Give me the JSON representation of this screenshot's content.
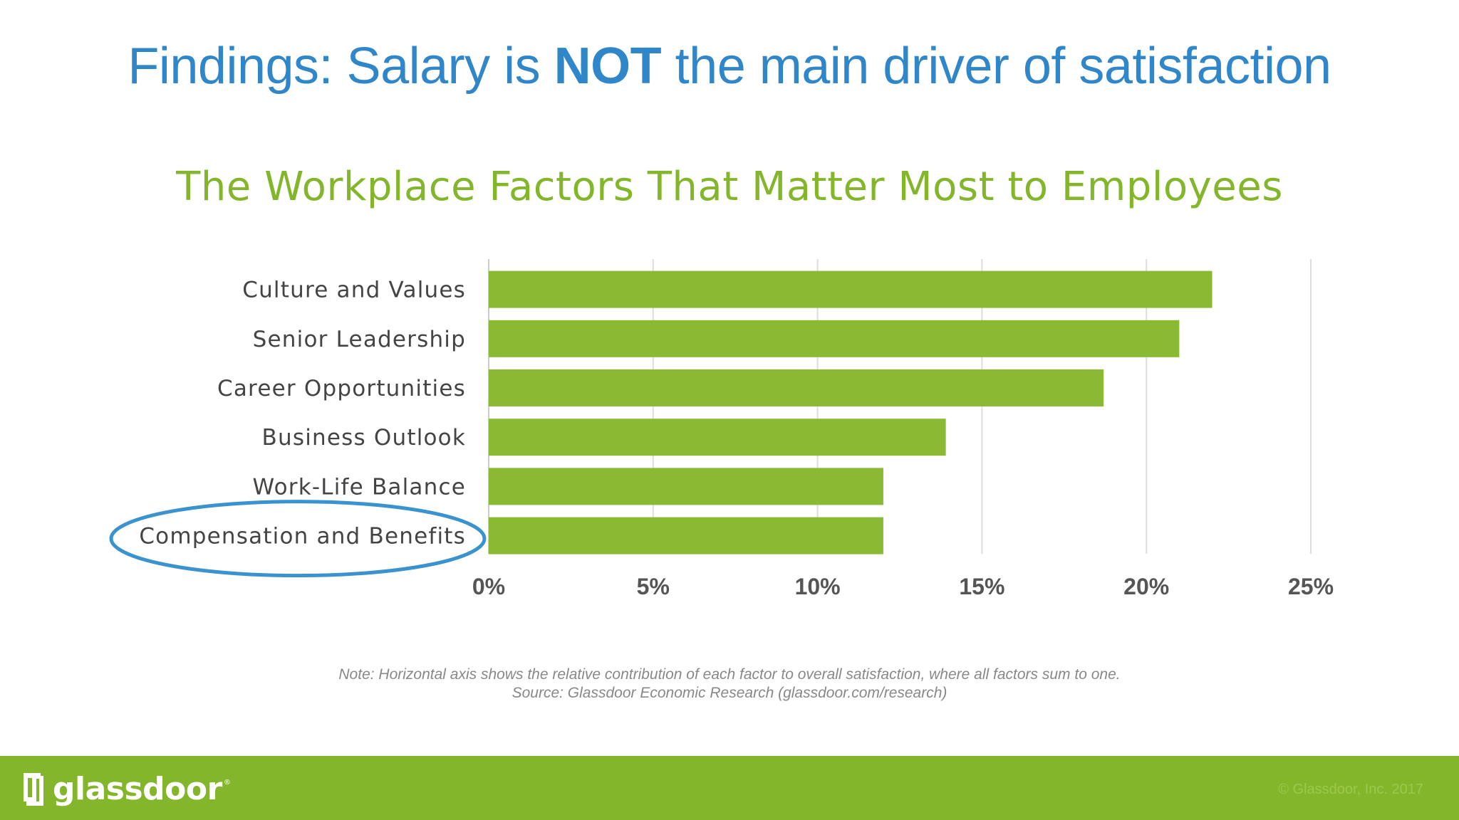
{
  "slide": {
    "title_prefix": "Findings: Salary is ",
    "title_emphasis": "NOT",
    "title_suffix": " the main driver of satisfaction",
    "note_line1": "Note: Horizontal axis shows the relative contribution of each factor to overall satisfaction, where all factors sum to one.",
    "note_line2": "Source: Glassdoor Economic Research (glassdoor.com/research)",
    "highlighted_category": "Compensation and Benefits",
    "highlight_color": "#3a93cf"
  },
  "footer": {
    "logo_text": "glassdoor",
    "logo_reg": "®",
    "copyright": "© Glassdoor, Inc. 2017",
    "band_color": "#84b62b"
  },
  "colors": {
    "title": "#2f86c9",
    "chart_title": "#84b62b",
    "bar": "#8aba34",
    "grid": "#dddddd",
    "category_label": "#444444",
    "tick_label": "#555555"
  },
  "chart_data": {
    "type": "bar",
    "orientation": "horizontal",
    "title": "The Workplace Factors That Matter Most to Employees",
    "categories": [
      "Culture and Values",
      "Senior Leadership",
      "Career Opportunities",
      "Business Outlook",
      "Work-Life Balance",
      "Compensation and Benefits"
    ],
    "values": [
      22.0,
      21.0,
      18.7,
      13.9,
      12.0,
      12.0
    ],
    "unit": "%",
    "xlim": [
      0,
      25
    ],
    "xticks": [
      0,
      5,
      10,
      15,
      20,
      25
    ],
    "xtick_labels": [
      "0%",
      "5%",
      "10%",
      "15%",
      "20%",
      "25%"
    ],
    "grid": true,
    "legend": "none"
  }
}
